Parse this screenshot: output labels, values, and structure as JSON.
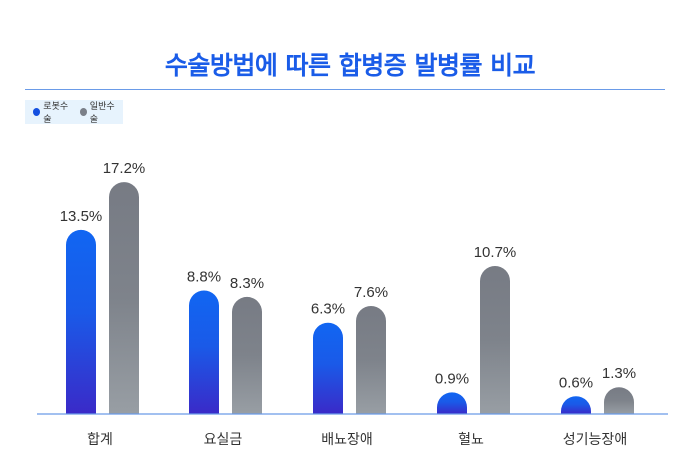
{
  "chart_data": {
    "type": "bar",
    "title": "수술방법에 따른 합병증 발병률 비교",
    "categories": [
      "합계",
      "요실금",
      "배뇨장애",
      "혈뇨",
      "성기능장애"
    ],
    "series": [
      {
        "name": "로봇수술",
        "values": [
          13.5,
          8.8,
          6.3,
          0.9,
          0.6
        ],
        "labels": [
          "13.5%",
          "8.8%",
          "6.3%",
          "0.9%",
          "0.6%"
        ],
        "color": "#1460f0"
      },
      {
        "name": "일반수술",
        "values": [
          17.2,
          8.3,
          7.6,
          10.7,
          1.3
        ],
        "labels": [
          "17.2%",
          "8.3%",
          "7.6%",
          "10.7%",
          "1.3%"
        ],
        "color": "#7a7f88"
      }
    ],
    "xlabel": "",
    "ylabel": "",
    "grid": false,
    "legend_position": "top-left"
  }
}
